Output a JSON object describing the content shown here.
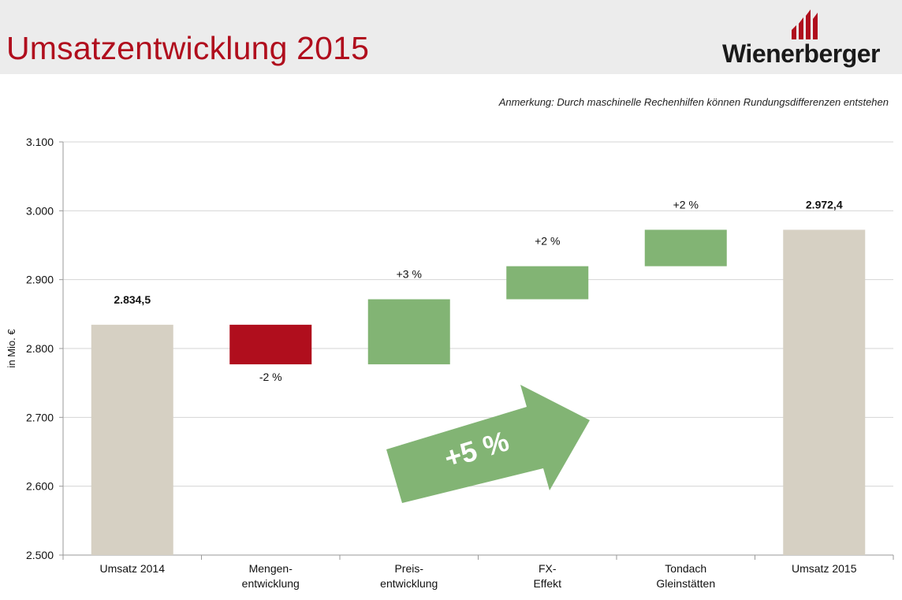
{
  "header": {
    "title": "Umsatzentwicklung 2015",
    "logo_text": "Wienerberger"
  },
  "note": "Anmerkung: Durch maschinelle Rechenhilfen können Rundungsdifferenzen entstehen",
  "colors": {
    "title": "#b00e1d",
    "total_bar": "#d6d0c3",
    "negative_bar": "#b00e1d",
    "positive_bar": "#82b474",
    "arrow": "#82b474",
    "header_bg": "#ececec"
  },
  "arrow_label": "+5 %",
  "chart_data": {
    "type": "waterfall",
    "ylabel": "in Mio. €",
    "ylim": [
      2500,
      3100
    ],
    "yticks": [
      {
        "value": 2500,
        "label": "2.500"
      },
      {
        "value": 2600,
        "label": "2.600"
      },
      {
        "value": 2700,
        "label": "2.700"
      },
      {
        "value": 2800,
        "label": "2.800"
      },
      {
        "value": 2900,
        "label": "2.900"
      },
      {
        "value": 3000,
        "label": "3.000"
      },
      {
        "value": 3100,
        "label": "3.100"
      }
    ],
    "grid": true,
    "bars": [
      {
        "category": [
          "Umsatz 2014"
        ],
        "kind": "total",
        "start": 2500,
        "end": 2834.5,
        "label": "2.834,5",
        "label_bold": true,
        "label_pos": "above"
      },
      {
        "category": [
          "Mengen-",
          "entwicklung"
        ],
        "kind": "negative",
        "start": 2834.5,
        "end": 2777,
        "label": "-2 %",
        "label_bold": false,
        "label_pos": "below"
      },
      {
        "category": [
          "Preis-",
          "entwicklung"
        ],
        "kind": "positive",
        "start": 2777,
        "end": 2871.5,
        "label": "+3 %",
        "label_bold": false,
        "label_pos": "above"
      },
      {
        "category": [
          "FX-",
          "Effekt"
        ],
        "kind": "positive",
        "start": 2871.5,
        "end": 2919.5,
        "label": "+2 %",
        "label_bold": false,
        "label_pos": "above"
      },
      {
        "category": [
          "Tondach",
          "Gleinstätten"
        ],
        "kind": "positive",
        "start": 2919.5,
        "end": 2972.4,
        "label": "+2 %",
        "label_bold": false,
        "label_pos": "above"
      },
      {
        "category": [
          "Umsatz 2015"
        ],
        "kind": "total",
        "start": 2500,
        "end": 2972.4,
        "label": "2.972,4",
        "label_bold": true,
        "label_pos": "above"
      }
    ]
  }
}
